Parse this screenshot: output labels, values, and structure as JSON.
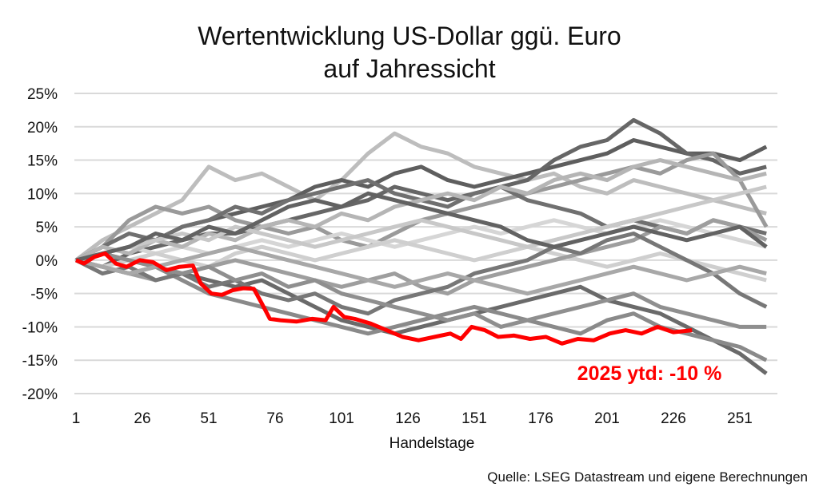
{
  "chart_data": {
    "type": "line",
    "title": [
      "Wertentwicklung US-Dollar ggü. Euro",
      "auf Jahressicht"
    ],
    "xlabel": "Handelstage",
    "ylabel": "",
    "source": "Quelle: LSEG Datastream und eigene Berechnungen",
    "annotation": "2025 ytd: -10 %",
    "xlim": [
      1,
      261
    ],
    "ylim": [
      -20,
      25
    ],
    "x_ticks": [
      "1",
      "26",
      "51",
      "76",
      "101",
      "126",
      "151",
      "176",
      "201",
      "226",
      "251"
    ],
    "y_ticks": [
      "25%",
      "20%",
      "15%",
      "10%",
      "5%",
      "0%",
      "-5%",
      "-10%",
      "-15%",
      "-20%"
    ],
    "grid": "horizontal",
    "highlight_color": "#ff0000",
    "gray_x": [
      1,
      11,
      21,
      31,
      41,
      51,
      61,
      71,
      81,
      91,
      101,
      111,
      121,
      131,
      141,
      151,
      161,
      171,
      181,
      191,
      201,
      211,
      221,
      231,
      241,
      251,
      261
    ],
    "gray_series": [
      {
        "color": "#bdbdbd",
        "values": [
          0,
          3,
          5,
          7,
          9,
          14,
          12,
          13,
          11,
          9,
          12,
          16,
          19,
          17,
          16,
          14,
          13,
          12,
          13,
          11,
          10,
          12,
          11,
          10,
          9,
          8,
          7
        ]
      },
      {
        "color": "#5e5e5e",
        "values": [
          0,
          1,
          2,
          3,
          5,
          6,
          7,
          8,
          9,
          11,
          12,
          11,
          13,
          14,
          12,
          11,
          12,
          13,
          14,
          15,
          16,
          18,
          17,
          16,
          16,
          15,
          17
        ]
      },
      {
        "color": "#666666",
        "values": [
          0,
          -1,
          1,
          2,
          3,
          4,
          4,
          5,
          6,
          7,
          8,
          9,
          11,
          10,
          9,
          10,
          11,
          12,
          15,
          17,
          18,
          21,
          19,
          16,
          15,
          13,
          14
        ]
      },
      {
        "color": "#9a9a9a",
        "values": [
          0,
          2,
          6,
          8,
          7,
          8,
          6,
          5,
          4,
          5,
          3,
          2,
          4,
          6,
          7,
          8,
          9,
          10,
          11,
          12,
          13,
          14,
          13,
          15,
          16,
          12,
          5
        ]
      },
      {
        "color": "#6a6a6a",
        "values": [
          0,
          -1,
          -2,
          -1,
          -2,
          -3,
          -4,
          -3,
          -5,
          -7,
          -9,
          -10,
          -11,
          -10,
          -9,
          -8,
          -7,
          -6,
          -5,
          -4,
          -6,
          -7,
          -8,
          -10,
          -12,
          -14,
          -17
        ]
      },
      {
        "color": "#8a8a8a",
        "values": [
          0,
          1,
          0,
          -1,
          -3,
          -5,
          -6,
          -7,
          -8,
          -9,
          -10,
          -11,
          -10,
          -9,
          -8,
          -7,
          -8,
          -9,
          -10,
          -11,
          -9,
          -8,
          -10,
          -11,
          -12,
          -13,
          -15
        ]
      },
      {
        "color": "#d6d6d6",
        "values": [
          0,
          1,
          2,
          1,
          2,
          1,
          2,
          3,
          2,
          3,
          4,
          3,
          2,
          3,
          4,
          5,
          4,
          5,
          6,
          5,
          4,
          5,
          6,
          5,
          4,
          3,
          2
        ]
      },
      {
        "color": "#707070",
        "values": [
          0,
          2,
          4,
          3,
          5,
          6,
          8,
          7,
          9,
          10,
          11,
          12,
          10,
          9,
          8,
          10,
          11,
          9,
          8,
          7,
          5,
          6,
          5,
          4,
          6,
          5,
          4
        ]
      },
      {
        "color": "#cfcfcf",
        "values": [
          0,
          -1,
          0,
          1,
          0,
          -1,
          1,
          2,
          1,
          0,
          1,
          2,
          3,
          2,
          1,
          0,
          1,
          2,
          1,
          0,
          -1,
          0,
          1,
          0,
          -1,
          -2,
          -3
        ]
      },
      {
        "color": "#9e9e9e",
        "values": [
          0,
          -1,
          -2,
          -3,
          -2,
          -1,
          0,
          -1,
          -2,
          -3,
          -4,
          -3,
          -2,
          -4,
          -5,
          -3,
          -2,
          -1,
          0,
          1,
          2,
          3,
          5,
          4,
          6,
          5,
          3
        ]
      },
      {
        "color": "#777777",
        "values": [
          0,
          -2,
          -1,
          -3,
          -2,
          -4,
          -3,
          -5,
          -6,
          -5,
          -7,
          -8,
          -6,
          -5,
          -4,
          -2,
          -1,
          0,
          2,
          1,
          3,
          4,
          2,
          0,
          -2,
          -5,
          -7
        ]
      },
      {
        "color": "#b5b5b5",
        "values": [
          0,
          2,
          1,
          3,
          2,
          4,
          3,
          5,
          6,
          5,
          7,
          6,
          8,
          9,
          10,
          9,
          11,
          10,
          12,
          13,
          12,
          14,
          15,
          14,
          13,
          12,
          13
        ]
      },
      {
        "color": "#8f8f8f",
        "values": [
          0,
          1,
          0,
          -1,
          -2,
          -1,
          -3,
          -2,
          -4,
          -3,
          -5,
          -6,
          -7,
          -8,
          -9,
          -8,
          -10,
          -9,
          -8,
          -7,
          -6,
          -5,
          -7,
          -8,
          -9,
          -10,
          -10
        ]
      },
      {
        "color": "#c8c8c8",
        "values": [
          0,
          1,
          2,
          3,
          4,
          3,
          5,
          4,
          3,
          2,
          3,
          4,
          5,
          6,
          5,
          4,
          3,
          2,
          3,
          4,
          5,
          6,
          7,
          8,
          9,
          10,
          11
        ]
      },
      {
        "color": "#a8a8a8",
        "values": [
          0,
          -1,
          -2,
          -1,
          0,
          1,
          2,
          1,
          0,
          -1,
          -2,
          -3,
          -4,
          -3,
          -2,
          -3,
          -4,
          -5,
          -4,
          -3,
          -2,
          -1,
          -2,
          -3,
          -2,
          -1,
          -2
        ]
      },
      {
        "color": "#626262",
        "values": [
          0,
          1,
          2,
          4,
          3,
          5,
          4,
          6,
          8,
          9,
          8,
          10,
          9,
          8,
          7,
          6,
          5,
          3,
          2,
          3,
          4,
          5,
          4,
          3,
          4,
          5,
          2
        ]
      }
    ],
    "highlight_series": {
      "name": "2025",
      "x": [
        1,
        4,
        8,
        12,
        16,
        20,
        25,
        30,
        35,
        40,
        45,
        48,
        52,
        56,
        60,
        64,
        68,
        71,
        74,
        78,
        84,
        90,
        95,
        98,
        102,
        106,
        112,
        118,
        124,
        130,
        136,
        142,
        146,
        150,
        155,
        160,
        166,
        172,
        178,
        184,
        190,
        196,
        202,
        208,
        214,
        220,
        226,
        233
      ],
      "values": [
        0,
        -0.5,
        0.5,
        1,
        -0.5,
        -1,
        0,
        -0.3,
        -1.5,
        -1,
        -0.8,
        -3.5,
        -5,
        -5.2,
        -4.5,
        -4.2,
        -4.3,
        -6.5,
        -8.8,
        -9,
        -9.2,
        -8.8,
        -9,
        -7,
        -8.5,
        -8.8,
        -9.5,
        -10.5,
        -11.5,
        -12,
        -11.5,
        -11,
        -11.8,
        -10,
        -10.5,
        -11.5,
        -11.3,
        -11.8,
        -11.5,
        -12.5,
        -11.8,
        -12,
        -11,
        -10.5,
        -11,
        -10,
        -10.8,
        -10.5
      ]
    }
  }
}
